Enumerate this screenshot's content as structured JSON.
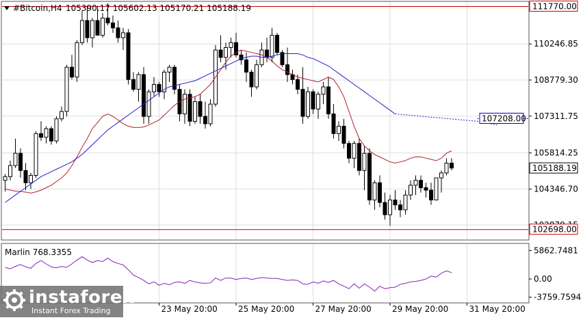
{
  "header": {
    "symbol": "#Bitcoin,H4",
    "ohlc": "105390.17 105602.13 105170.21 105188.19",
    "triangle_icon": "triangle-down-icon"
  },
  "chart_data": {
    "type": "candlestick",
    "symbol": "#Bitcoin",
    "timeframe": "H4",
    "ylim": [
      102300,
      111950
    ],
    "y_ticks": [
      110246.85,
      108779.3,
      107311.75,
      105814.25,
      104346.7,
      102879.15
    ],
    "x_labels": [
      "23 May 20:00",
      "25 May 20:00",
      "27 May 20:00",
      "29 May 20:00",
      "31 May 20:00"
    ],
    "x_label_slots": [
      30,
      45,
      60,
      75,
      90
    ],
    "candles": [
      [
        104700,
        104950,
        104250,
        104850
      ],
      [
        104850,
        105500,
        104700,
        105300
      ],
      [
        105300,
        106400,
        105200,
        105800
      ],
      [
        105800,
        106000,
        104800,
        105100
      ],
      [
        105100,
        105400,
        104300,
        104600
      ],
      [
        104600,
        105000,
        104350,
        104900
      ],
      [
        104900,
        106700,
        104800,
        106600
      ],
      [
        106600,
        107100,
        106300,
        106450
      ],
      [
        106450,
        106900,
        106200,
        106800
      ],
      [
        106800,
        106900,
        106150,
        106300
      ],
      [
        106300,
        107300,
        106200,
        107200
      ],
      [
        107200,
        107700,
        107100,
        107500
      ],
      [
        107500,
        109400,
        107300,
        109300
      ],
      [
        109300,
        109800,
        108800,
        108900
      ],
      [
        108900,
        110400,
        108700,
        110300
      ],
      [
        110300,
        111600,
        110200,
        111200
      ],
      [
        111200,
        111800,
        110300,
        110500
      ],
      [
        110500,
        111300,
        110100,
        111200
      ],
      [
        111200,
        111800,
        110600,
        110600
      ],
      [
        110600,
        111500,
        110500,
        111300
      ],
      [
        111300,
        111900,
        111000,
        111100
      ],
      [
        111100,
        111400,
        110700,
        110900
      ],
      [
        110900,
        111200,
        110300,
        110500
      ],
      [
        110500,
        110900,
        110000,
        110700
      ],
      [
        110700,
        110850,
        108600,
        108800
      ],
      [
        108800,
        109100,
        108300,
        108400
      ],
      [
        108400,
        109100,
        107900,
        109000
      ],
      [
        109000,
        109300,
        107000,
        107300
      ],
      [
        107300,
        108400,
        107000,
        108300
      ],
      [
        108300,
        108900,
        108100,
        108600
      ],
      [
        108600,
        108700,
        108100,
        108300
      ],
      [
        108300,
        109200,
        108000,
        109100
      ],
      [
        109100,
        109400,
        108700,
        109300
      ],
      [
        109300,
        109400,
        108200,
        108400
      ],
      [
        108400,
        108600,
        107100,
        107400
      ],
      [
        107400,
        108400,
        107000,
        108200
      ],
      [
        108200,
        108400,
        106900,
        107100
      ],
      [
        107100,
        108100,
        107000,
        107900
      ],
      [
        107900,
        108200,
        107000,
        107300
      ],
      [
        107300,
        107900,
        106800,
        107000
      ],
      [
        107000,
        108000,
        106900,
        107800
      ],
      [
        107800,
        110200,
        107700,
        110000
      ],
      [
        110000,
        110600,
        109500,
        109700
      ],
      [
        109700,
        110300,
        109200,
        110100
      ],
      [
        110100,
        110500,
        109700,
        110300
      ],
      [
        110300,
        110700,
        109700,
        109800
      ],
      [
        109800,
        110000,
        109400,
        109600
      ],
      [
        109600,
        109900,
        108700,
        109100
      ],
      [
        109100,
        109200,
        108100,
        108500
      ],
      [
        108500,
        109600,
        108400,
        109400
      ],
      [
        109400,
        110300,
        109300,
        110000
      ],
      [
        110000,
        110500,
        109500,
        109700
      ],
      [
        109700,
        110900,
        109500,
        110600
      ],
      [
        110600,
        110700,
        109800,
        109900
      ],
      [
        109900,
        110000,
        109300,
        109400
      ],
      [
        109400,
        110100,
        108700,
        109000
      ],
      [
        109000,
        109200,
        108600,
        108800
      ],
      [
        108800,
        109000,
        108200,
        108400
      ],
      [
        108400,
        109300,
        107000,
        107300
      ],
      [
        107300,
        108500,
        107200,
        108300
      ],
      [
        108300,
        108400,
        107400,
        107600
      ],
      [
        107600,
        108300,
        107200,
        108200
      ],
      [
        108200,
        108700,
        107800,
        108500
      ],
      [
        108500,
        108900,
        107200,
        107400
      ],
      [
        107400,
        107800,
        106400,
        106600
      ],
      [
        106600,
        107100,
        106300,
        106900
      ],
      [
        106900,
        107200,
        106000,
        106200
      ],
      [
        106200,
        106300,
        105400,
        105600
      ],
      [
        105600,
        106300,
        105200,
        106200
      ],
      [
        106200,
        106400,
        104900,
        105100
      ],
      [
        105100,
        106100,
        104300,
        105800
      ],
      [
        105800,
        106000,
        103700,
        103900
      ],
      [
        103900,
        104700,
        103500,
        104600
      ],
      [
        104600,
        104900,
        103600,
        103800
      ],
      [
        103800,
        104200,
        103100,
        103300
      ],
      [
        103300,
        104100,
        102850,
        103900
      ],
      [
        103900,
        104300,
        103500,
        103700
      ],
      [
        103700,
        103900,
        103200,
        103500
      ],
      [
        103500,
        104300,
        103300,
        104100
      ],
      [
        104100,
        104700,
        103900,
        104500
      ],
      [
        104500,
        104900,
        104100,
        104700
      ],
      [
        104700,
        104900,
        104200,
        104400
      ],
      [
        104400,
        104600,
        104000,
        104300
      ],
      [
        104300,
        104600,
        103700,
        103900
      ],
      [
        103900,
        104800,
        103900,
        104800
      ],
      [
        104800,
        105100,
        104200,
        105000
      ],
      [
        105000,
        105600,
        104900,
        105400
      ],
      [
        105400,
        105600,
        105100,
        105200
      ]
    ],
    "series": [
      {
        "name": "MA-short",
        "color": "#b0202a",
        "values": [
          104350,
          104300,
          104260,
          104250,
          104220,
          104180,
          104230,
          104300,
          104400,
          104500,
          104650,
          104800,
          105000,
          105300,
          105650,
          106050,
          106400,
          106800,
          107050,
          107300,
          107400,
          107300,
          107150,
          107000,
          106900,
          106850,
          106850,
          106870,
          106950,
          107050,
          107150,
          107350,
          107550,
          107750,
          107900,
          108000,
          108050,
          108100,
          108200,
          108400,
          108600,
          108900,
          109200,
          109500,
          109750,
          109900,
          110000,
          109950,
          109900,
          109850,
          109800,
          109700,
          109550,
          109350,
          109200,
          109100,
          109000,
          108900,
          108850,
          108800,
          108750,
          108700,
          108800,
          108900,
          108800,
          108500,
          108100,
          107500,
          106900,
          106400,
          106100,
          105900,
          105750,
          105650,
          105550,
          105450,
          105400,
          105450,
          105500,
          105600,
          105650,
          105650,
          105600,
          105550,
          105500,
          105600,
          105800,
          105900
        ]
      },
      {
        "name": "MA-long",
        "color": "#2020c8",
        "values": [
          103800,
          103950,
          104100,
          104250,
          104400,
          104550,
          104700,
          104850,
          104950,
          105050,
          105150,
          105250,
          105350,
          105450,
          105600,
          105750,
          105950,
          106150,
          106350,
          106550,
          106750,
          106900,
          107050,
          107200,
          107350,
          107500,
          107650,
          107800,
          107950,
          108100,
          108250,
          108400,
          108500,
          108550,
          108600,
          108650,
          108700,
          108750,
          108850,
          108950,
          109050,
          109150,
          109250,
          109350,
          109450,
          109550,
          109650,
          109700,
          109750,
          109750,
          109700,
          109700,
          109750,
          109800,
          109850,
          109850,
          109850,
          109850,
          109800,
          109700,
          109650,
          109550,
          109450,
          109350,
          109200,
          109050,
          108900,
          108750,
          108600,
          108450,
          108300,
          108150,
          108000,
          107850,
          107700,
          107550,
          107400
        ]
      }
    ],
    "ma_long_projection": [
      [
        76,
        107400
      ],
      [
        92,
        107100
      ],
      [
        96,
        106950
      ]
    ],
    "levels": [
      {
        "price": 111770.0,
        "label": "111770.00",
        "color": "#cc0000"
      },
      {
        "price": 102698.0,
        "label": "102698.00",
        "color": "#cc0000"
      }
    ],
    "price_marker": {
      "price": 107208.0,
      "label": "107208.00",
      "color": "#0000cc"
    },
    "current_price": {
      "price": 105188.19,
      "label": "105188.19"
    },
    "indicator": {
      "name": "Marlin 768.3355",
      "ylim": [
        -4800,
        7200
      ],
      "y_ticks": [
        5862.7481,
        0.0,
        -3759.7594
      ],
      "y_tick_labels": [
        "5862.7481",
        "0.00",
        "-3759.7594"
      ],
      "color": "#8a1fb8",
      "values": [
        2400,
        2100,
        2600,
        3000,
        2500,
        2200,
        3200,
        3800,
        3100,
        2500,
        2300,
        2600,
        2400,
        3100,
        3900,
        4600,
        3900,
        3400,
        3800,
        3600,
        4300,
        3600,
        3200,
        2900,
        1900,
        800,
        300,
        -300,
        -1000,
        -600,
        -1300,
        -900,
        -1200,
        -700,
        -600,
        -900,
        -300,
        -600,
        -800,
        -900,
        -800,
        200,
        -300,
        200,
        200,
        -100,
        100,
        200,
        -100,
        100,
        300,
        200,
        100,
        100,
        -100,
        -300,
        -200,
        -300,
        -1000,
        -1100,
        -600,
        -900,
        -400,
        -700,
        -300,
        -1000,
        -1500,
        -2000,
        -1000,
        -1900,
        -1000,
        -1700,
        -2500,
        -1500,
        -2000,
        -1800,
        -1700,
        -1100,
        -900,
        -600,
        -500,
        -300,
        0,
        600,
        400,
        1200,
        1700,
        1300
      ]
    }
  },
  "watermark": {
    "logo_text": "instaforex",
    "tagline": "Instant Forex Trading",
    "logo_icon": "gear-icon"
  }
}
